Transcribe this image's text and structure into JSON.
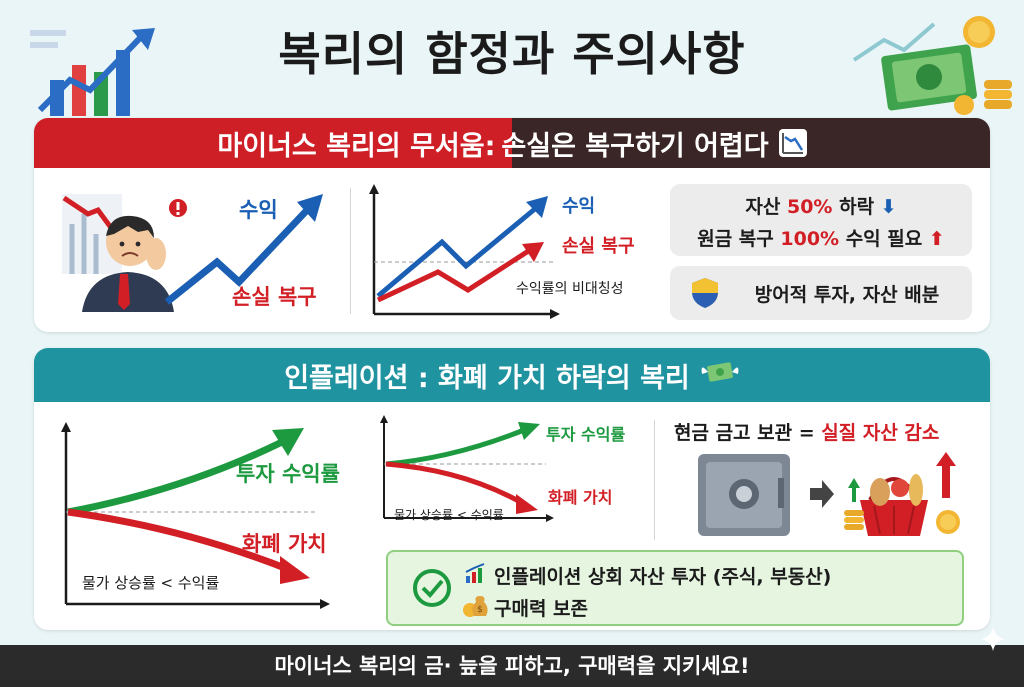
{
  "title": "복리의 함정과 주의사항",
  "section1": {
    "banner_left": "마이너스 복리의 무서움:",
    "banner_right": "손실은 복구하기 어렵다",
    "banner_icon": "chart-decreasing-icon",
    "illus_label_profit": "수익",
    "illus_label_recovery": "손실 복구",
    "chart": {
      "label_profit": "수익",
      "label_recovery": "손실 복구",
      "caption": "수익률의 비대칭성"
    },
    "info1": {
      "line1_pre": "자산 ",
      "line1_hl": "50%",
      "line1_post": " 하락",
      "line2_pre": "원금 복구 ",
      "line2_hl": "100%",
      "line2_post": " 수익 필요"
    },
    "info2": "방어적 투자, 자산 배분"
  },
  "section2": {
    "banner": "인플레이션 : 화폐 가치 하락의 복리",
    "banner_icon": "money-with-wings-icon",
    "chart_big": {
      "label_invest": "투자 수익률",
      "label_money": "화폐 가치",
      "caption": "물가 상승률 < 수익률"
    },
    "chart_small": {
      "label_invest": "투자 수익률",
      "label_money": "화폐 가치",
      "caption": "물가 상승률 < 수익률"
    },
    "safe_title_pre": "현금 금고 보관 = ",
    "safe_title_hl": "실질 자산 감소",
    "tip1": "인플레이션 상회 자산 투자 (주식, 부동산)",
    "tip2": "구매력 보존"
  },
  "footer": "마이너스 복리의 금· 늪을 피하고, 구매력을 지키세요!",
  "colors": {
    "red": "#d21f26",
    "blue": "#1a5fb4",
    "green": "#1d9a3f",
    "teal": "#1f93a0"
  }
}
